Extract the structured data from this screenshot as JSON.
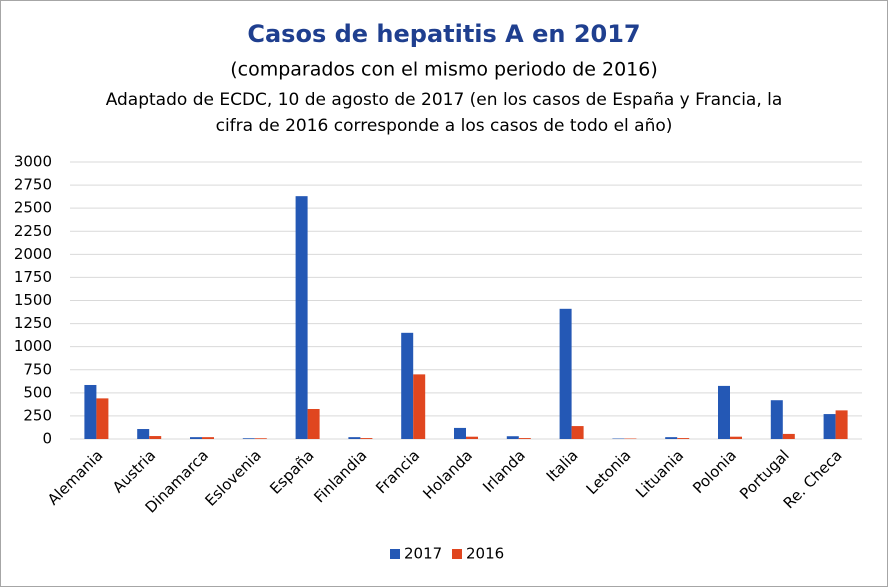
{
  "chart_data": {
    "type": "bar",
    "title": "Casos de hepatitis A en 2017",
    "subtitle": "(comparados con el mismo periodo de 2016)",
    "notes": [
      "Adaptado de ECDC, 10 de agosto de 2017 (en los casos de España y Francia, la",
      "cifra de 2016 corresponde a los casos de todo el año)"
    ],
    "categories": [
      "Alemania",
      "Austria",
      "Dinamarca",
      "Eslovenia",
      "España",
      "Finlandia",
      "Francia",
      "Holanda",
      "Irlanda",
      "Italia",
      "Letonia",
      "Lituania",
      "Polonia",
      "Portugal",
      "Re. Checa"
    ],
    "series": [
      {
        "name": "2017",
        "color": "#2458b5",
        "values": [
          585,
          108,
          20,
          8,
          2630,
          20,
          1150,
          120,
          30,
          1410,
          5,
          20,
          575,
          420,
          270
        ]
      },
      {
        "name": "2016",
        "color": "#e0461f",
        "values": [
          440,
          32,
          20,
          8,
          325,
          10,
          700,
          25,
          10,
          140,
          5,
          10,
          25,
          55,
          310
        ]
      }
    ],
    "ylim": [
      0,
      3000
    ],
    "yticks": [
      0,
      250,
      500,
      750,
      1000,
      1250,
      1500,
      1750,
      2000,
      2250,
      2500,
      2750,
      3000
    ],
    "grid": true,
    "legend": "bottom"
  }
}
